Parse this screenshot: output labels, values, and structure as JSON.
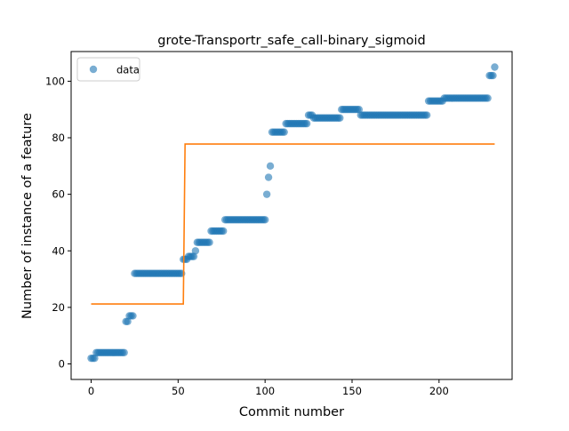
{
  "chart_data": {
    "type": "scatter",
    "title": "grote-Transportr_safe_call-binary_sigmoid",
    "xlabel": "Commit number",
    "ylabel": "Number of instance of a feature",
    "xlim": [
      -11.5,
      242
    ],
    "ylim": [
      -5.5,
      110.5
    ],
    "xticks": [
      0,
      50,
      100,
      150,
      200
    ],
    "yticks": [
      0,
      20,
      40,
      60,
      80,
      100
    ],
    "grid": false,
    "legend": {
      "placement": "top-left",
      "entries": [
        "data"
      ]
    },
    "colors": {
      "data": "#1f77b4",
      "fit": "#ff7f0e"
    },
    "series": [
      {
        "name": "data",
        "kind": "scatter",
        "segments": [
          {
            "x_start": 0,
            "x_end": 2,
            "y": 2
          },
          {
            "x_start": 3,
            "x_end": 19,
            "y": 4
          },
          {
            "x_start": 20,
            "x_end": 21,
            "y": 15
          },
          {
            "x_start": 22,
            "x_end": 24,
            "y": 17
          },
          {
            "x_start": 25,
            "x_end": 52,
            "y": 32
          },
          {
            "x_start": 53,
            "x_end": 55,
            "y": 37
          },
          {
            "x_start": 56,
            "x_end": 59,
            "y": 38
          },
          {
            "x_start": 60,
            "x_end": 60,
            "y": 40
          },
          {
            "x_start": 61,
            "x_end": 68,
            "y": 43
          },
          {
            "x_start": 69,
            "x_end": 76,
            "y": 47
          },
          {
            "x_start": 77,
            "x_end": 100,
            "y": 51
          },
          {
            "x_start": 101,
            "x_end": 101,
            "y": 60
          },
          {
            "x_start": 102,
            "x_end": 102,
            "y": 66
          },
          {
            "x_start": 103,
            "x_end": 103,
            "y": 70
          },
          {
            "x_start": 104,
            "x_end": 111,
            "y": 82
          },
          {
            "x_start": 112,
            "x_end": 124,
            "y": 85
          },
          {
            "x_start": 125,
            "x_end": 127,
            "y": 88
          },
          {
            "x_start": 128,
            "x_end": 143,
            "y": 87
          },
          {
            "x_start": 144,
            "x_end": 154,
            "y": 90
          },
          {
            "x_start": 155,
            "x_end": 193,
            "y": 88
          },
          {
            "x_start": 194,
            "x_end": 202,
            "y": 93
          },
          {
            "x_start": 203,
            "x_end": 228,
            "y": 94
          },
          {
            "x_start": 229,
            "x_end": 231,
            "y": 102
          },
          {
            "x_start": 232,
            "x_end": 232,
            "y": 105
          }
        ]
      },
      {
        "kind": "line",
        "points": [
          [
            0,
            21.2
          ],
          [
            53,
            21.2
          ],
          [
            54,
            77.8
          ],
          [
            232,
            77.8
          ]
        ]
      }
    ]
  }
}
